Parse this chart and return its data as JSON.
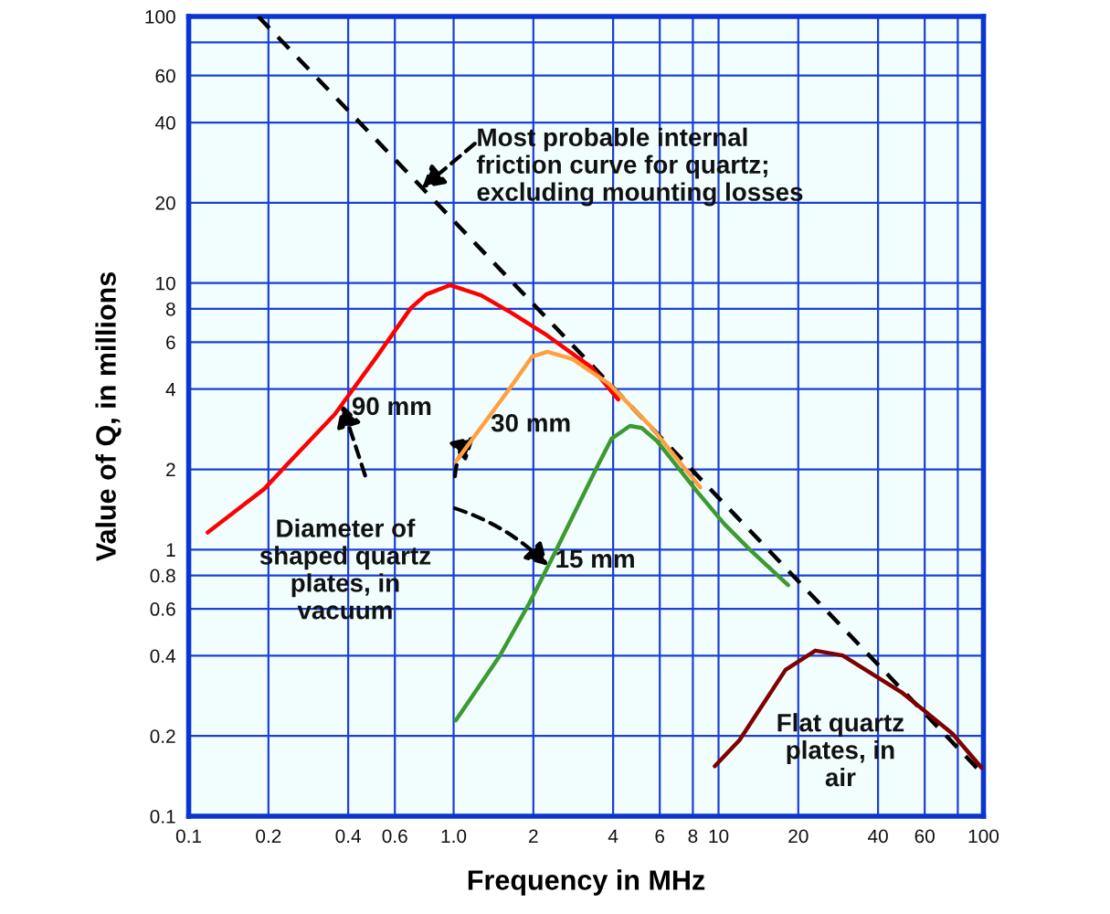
{
  "chart_data": {
    "type": "line",
    "xlabel": "Frequency in MHz",
    "ylabel": "Value of Q, in millions",
    "log": "xy",
    "grid": true,
    "marker": "none",
    "xlim": [
      0.1,
      100
    ],
    "ylim": [
      0.1,
      100
    ],
    "xticks": [
      0.1,
      0.2,
      0.4,
      0.6,
      {
        "value": 1,
        "label": "1.0"
      },
      2,
      4,
      6,
      8,
      10,
      20,
      40,
      60,
      {
        "value": 80,
        "label": null
      },
      100
    ],
    "yticks": [
      0.1,
      0.2,
      0.4,
      0.6,
      0.8,
      1,
      2,
      4,
      6,
      8,
      10,
      20,
      40,
      60,
      {
        "value": 80,
        "label": null
      },
      100
    ],
    "series": [
      {
        "color": "#000000",
        "line_style": "dashed",
        "x": [
          0.183,
          100
        ],
        "values": [
          100,
          0.143
        ]
      },
      {
        "color": "#ff0000",
        "line_style": "solid",
        "x": [
          0.118,
          0.193,
          0.227,
          0.356,
          0.513,
          0.689,
          0.788,
          0.969,
          1.27,
          1.65,
          2.26,
          3.32,
          4.18
        ],
        "values": [
          1.16,
          1.69,
          2.01,
          3.22,
          5.3,
          8.05,
          9.06,
          9.82,
          8.99,
          7.74,
          6.35,
          4.82,
          3.66
        ]
      },
      {
        "color": "#ffa040",
        "line_style": "solid",
        "x": [
          1.02,
          1.61,
          1.98,
          2.26,
          2.81,
          3.86,
          5.56,
          8.53
        ],
        "values": [
          2.14,
          3.96,
          5.3,
          5.52,
          5.18,
          4.19,
          2.89,
          1.71
        ]
      },
      {
        "color": "#3c9a32",
        "line_style": "solid",
        "x": [
          1.02,
          1.49,
          1.93,
          2.39,
          3.45,
          3.95,
          4.63,
          5.13,
          5.87,
          8.26,
          10.5,
          13.3,
          18.3
        ],
        "values": [
          0.229,
          0.398,
          0.629,
          0.956,
          2.01,
          2.61,
          2.91,
          2.86,
          2.55,
          1.66,
          1.25,
          0.987,
          0.736
        ]
      },
      {
        "color": "#800000",
        "line_style": "solid",
        "x": [
          9.68,
          12.0,
          17.9,
          23.2,
          29.4,
          49.0,
          76.4,
          98.4
        ],
        "values": [
          0.154,
          0.193,
          0.354,
          0.418,
          0.401,
          0.292,
          0.204,
          0.152
        ]
      }
    ],
    "annotations": [
      {
        "text": "Most probable internal\nfriction curve for quartz;\nexcluding mounting losses",
        "x": 0.76,
        "y": 22.7
      },
      "Diameter of\nshaped quartz\nplates, in\nvacuum",
      {
        "text": "90 mm",
        "x": 0.379,
        "y": 3.5
      },
      {
        "text": "30 mm",
        "x": 1.2,
        "y": 2.66
      },
      {
        "text": "15 mm",
        "x": 2.27,
        "y": 0.87
      },
      "Flat quartz\nplates, in\nair"
    ]
  }
}
